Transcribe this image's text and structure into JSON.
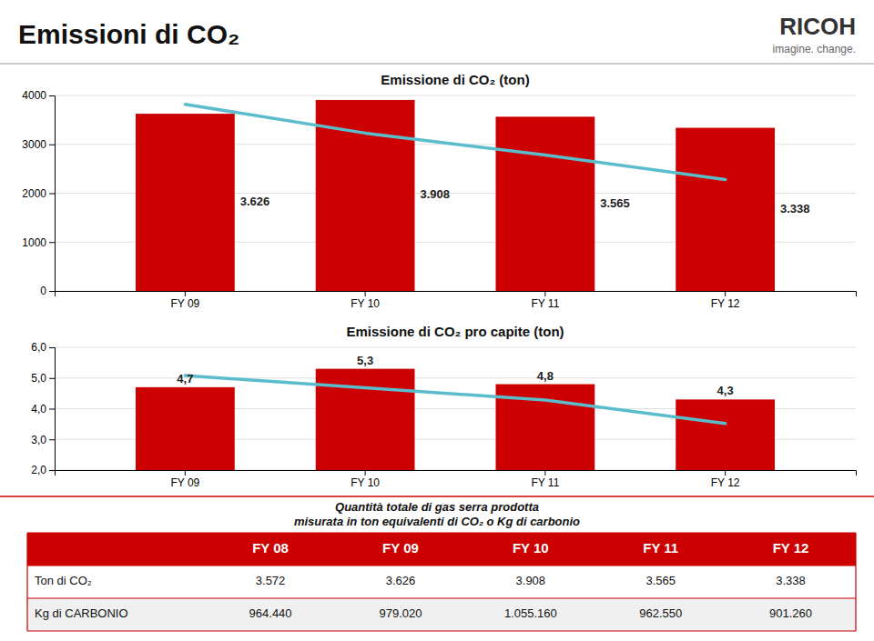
{
  "title": "Emissioni di CO₂",
  "annotations": [
    "RICOH",
    "imagine. change."
  ],
  "chart_data": [
    {
      "type": "bar",
      "title": "Emissione di CO₂ (ton)",
      "categories": [
        "FY 09",
        "FY 10",
        "FY 11",
        "FY 12"
      ],
      "series": [
        {
          "type": "bar",
          "color": "#cc0000",
          "values": [
            3626,
            3908,
            3565,
            3338
          ],
          "value_labels": [
            "3.626",
            "3.908",
            "3.565",
            "3.338"
          ],
          "data_labels": true
        },
        {
          "type": "line",
          "color": "#5bbccc",
          "values": [
            3820,
            3230,
            2780,
            2280
          ]
        }
      ],
      "ylim": [
        0,
        4000
      ],
      "yticks": [
        0,
        1000,
        2000,
        3000,
        4000
      ],
      "grid": true
    },
    {
      "type": "bar",
      "title": "Emissione di CO₂ pro capite (ton)",
      "categories": [
        "FY 09",
        "FY 10",
        "FY 11",
        "FY 12"
      ],
      "series": [
        {
          "type": "bar",
          "color": "#cc0000",
          "values": [
            4.7,
            5.3,
            4.8,
            4.3
          ],
          "value_labels": [
            "4,7",
            "5,3",
            "4,8",
            "4,3"
          ],
          "data_labels": true
        },
        {
          "type": "line",
          "color": "#5bbccc",
          "values": [
            5.08,
            4.68,
            4.28,
            3.52
          ]
        }
      ],
      "ylim": [
        2.0,
        6.0
      ],
      "yticks": [
        {
          "value": 2.0,
          "label": "2,0"
        },
        {
          "value": 3.0,
          "label": "3,0"
        },
        {
          "value": 4.0,
          "label": "4,0"
        },
        {
          "value": 5.0,
          "label": "5,0"
        },
        {
          "value": 6.0,
          "label": "6,0"
        }
      ],
      "grid": true
    }
  ],
  "table": {
    "title": "Quantità totale di gas serra prodotta",
    "subtitle": "misurata in ton equivalenti di CO₂ o Kg di carbonio",
    "columns": [
      "FY 08",
      "FY 09",
      "FY 10",
      "FY 11",
      "FY 12"
    ],
    "rows": [
      {
        "label": "Ton di CO₂",
        "values": [
          {
            "value": 3572,
            "label": "3.572"
          },
          {
            "value": 3626,
            "label": "3.626"
          },
          {
            "value": 3908,
            "label": "3.908"
          },
          {
            "value": 3565,
            "label": "3.565"
          },
          {
            "value": 3338,
            "label": "3.338"
          }
        ]
      },
      {
        "label": "Kg di CARBONIO",
        "values": [
          {
            "value": 964440,
            "label": "964.440"
          },
          {
            "value": 979020,
            "label": "979.020"
          },
          {
            "value": 1055160,
            "label": "1.055.160"
          },
          {
            "value": 962550,
            "label": "962.550"
          },
          {
            "value": 901260,
            "label": "901.260"
          }
        ]
      }
    ]
  }
}
